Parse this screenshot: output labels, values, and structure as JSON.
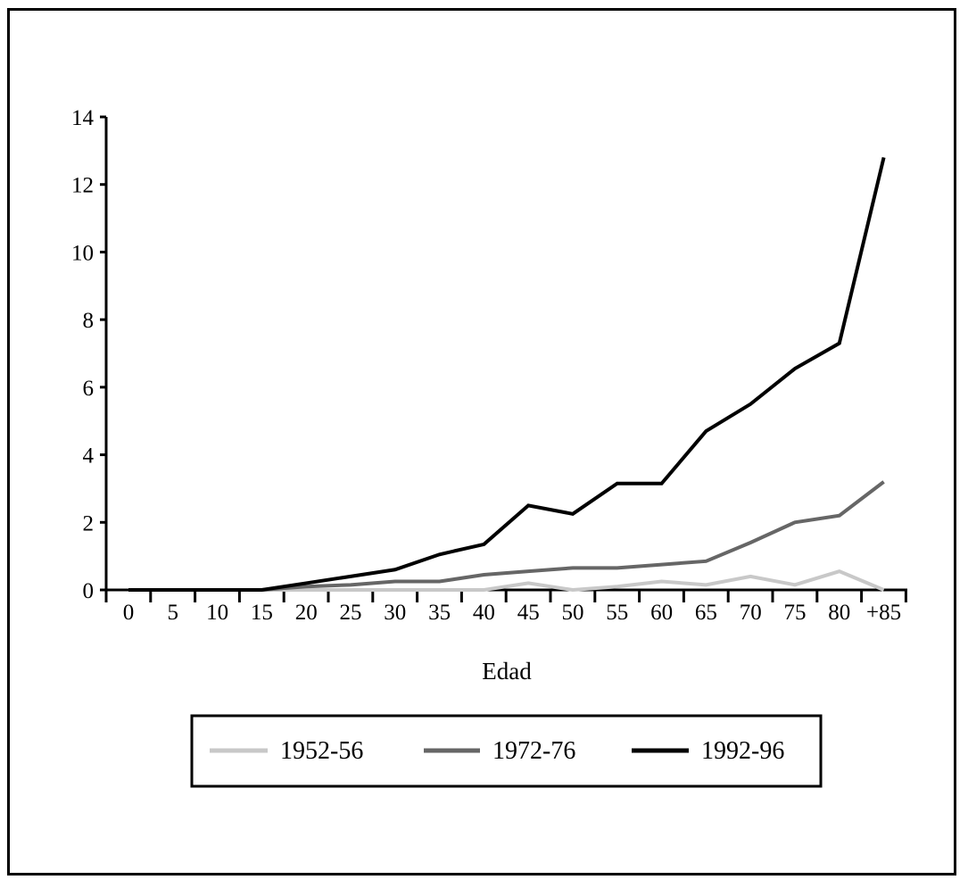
{
  "chart_data": {
    "type": "line",
    "title": "",
    "xlabel": "Edad",
    "ylabel": "",
    "categories": [
      "0",
      "5",
      "10",
      "15",
      "20",
      "25",
      "30",
      "35",
      "40",
      "45",
      "50",
      "55",
      "60",
      "65",
      "70",
      "75",
      "80",
      "+85"
    ],
    "yticks": [
      "0",
      "2",
      "4",
      "6",
      "8",
      "10",
      "12",
      "14"
    ],
    "ylim": [
      0,
      14
    ],
    "grid": false,
    "legend_position": "bottom",
    "series": [
      {
        "name": "1952-56",
        "color": "#c8c8c8",
        "values": [
          0,
          0,
          0,
          0,
          0,
          0,
          0,
          0,
          0,
          0.2,
          0,
          0.1,
          0.25,
          0.15,
          0.4,
          0.15,
          0.55,
          0
        ]
      },
      {
        "name": "1972-76",
        "color": "#666666",
        "values": [
          0,
          0,
          0,
          0,
          0.1,
          0.15,
          0.25,
          0.25,
          0.45,
          0.55,
          0.65,
          0.65,
          0.75,
          0.85,
          1.4,
          2.0,
          2.2,
          3.2
        ]
      },
      {
        "name": "1992-96",
        "color": "#000000",
        "values": [
          0,
          0,
          0,
          0,
          0.2,
          0.4,
          0.6,
          1.05,
          1.35,
          2.5,
          2.25,
          3.15,
          3.15,
          4.7,
          5.5,
          6.55,
          7.3,
          12.8
        ]
      }
    ]
  }
}
